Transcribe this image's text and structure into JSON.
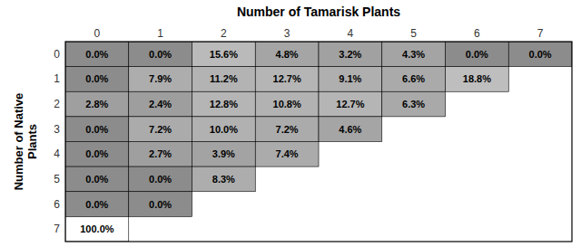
{
  "chart_data": {
    "type": "heatmap",
    "xlabel": "Number of Tamarisk Plants",
    "ylabel": "Number of Native\nPlants",
    "x_categories": [
      "0",
      "1",
      "2",
      "3",
      "4",
      "5",
      "6",
      "7"
    ],
    "y_categories": [
      "0",
      "1",
      "2",
      "3",
      "4",
      "5",
      "6",
      "7"
    ],
    "values": [
      [
        0.0,
        0.0,
        15.6,
        4.8,
        3.2,
        4.3,
        0.0,
        0.0
      ],
      [
        0.0,
        7.9,
        11.2,
        12.7,
        9.1,
        6.6,
        18.8,
        null
      ],
      [
        2.8,
        2.4,
        12.8,
        10.8,
        12.7,
        6.3,
        null,
        null
      ],
      [
        0.0,
        7.2,
        10.0,
        7.2,
        4.6,
        null,
        null,
        null
      ],
      [
        0.0,
        2.7,
        3.9,
        7.4,
        null,
        null,
        null,
        null
      ],
      [
        0.0,
        0.0,
        8.3,
        null,
        null,
        null,
        null,
        null
      ],
      [
        0.0,
        0.0,
        null,
        null,
        null,
        null,
        null,
        null
      ],
      [
        100.0,
        null,
        null,
        null,
        null,
        null,
        null,
        null
      ]
    ],
    "value_labels": [
      [
        "0.0%",
        "0.0%",
        "15.6%",
        "4.8%",
        "3.2%",
        "4.3%",
        "0.0%",
        "0.0%"
      ],
      [
        "0.0%",
        "7.9%",
        "11.2%",
        "12.7%",
        "9.1%",
        "6.6%",
        "18.8%",
        null
      ],
      [
        "2.8%",
        "2.4%",
        "12.8%",
        "10.8%",
        "12.7%",
        "6.3%",
        null,
        null
      ],
      [
        "0.0%",
        "7.2%",
        "10.0%",
        "7.2%",
        "4.6%",
        null,
        null,
        null
      ],
      [
        "0.0%",
        "2.7%",
        "3.9%",
        "7.4%",
        null,
        null,
        null,
        null
      ],
      [
        "0.0%",
        "0.0%",
        "8.3%",
        null,
        null,
        null,
        null,
        null
      ],
      [
        "0.0%",
        "0.0%",
        null,
        null,
        null,
        null,
        null,
        null
      ],
      [
        "100.0%",
        null,
        null,
        null,
        null,
        null,
        null,
        null
      ]
    ],
    "data_labels": true,
    "text_color": "#000000",
    "border_color": "#000000"
  }
}
